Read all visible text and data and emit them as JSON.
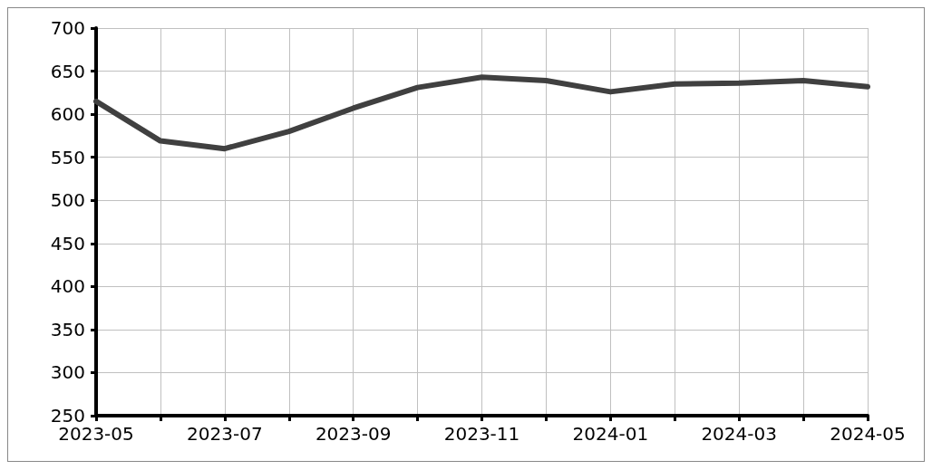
{
  "chart_data": {
    "type": "line",
    "categories": [
      "2023-05",
      null,
      "2023-07",
      null,
      "2023-09",
      null,
      "2023-11",
      null,
      "2024-01",
      null,
      "2024-03",
      null,
      "2024-05"
    ],
    "series": [
      {
        "color": "#404040",
        "values": [
          615,
          569,
          560,
          580,
          607,
          631,
          643,
          639,
          626,
          635,
          636,
          639,
          632
        ]
      }
    ],
    "ylim": [
      250,
      700
    ],
    "yticks": [
      250,
      300,
      350,
      400,
      450,
      500,
      550,
      600,
      650,
      700
    ],
    "grid": true,
    "marker": "none",
    "line_style": "solid"
  }
}
